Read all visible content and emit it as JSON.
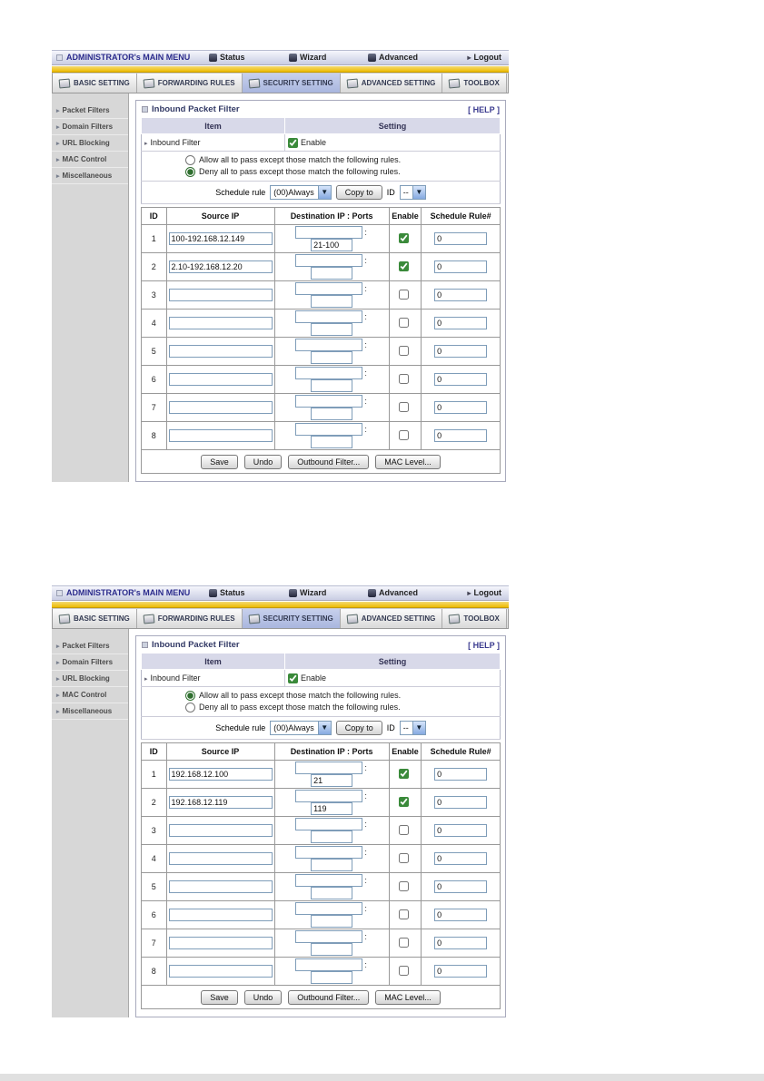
{
  "shared": {
    "menubar": {
      "title": "ADMINISTRATOR's MAIN MENU",
      "status": "Status",
      "wizard": "Wizard",
      "advanced": "Advanced",
      "logout": "Logout",
      "logout_arrow": "▸"
    },
    "tabs": [
      "BASIC SETTING",
      "FORWARDING RULES",
      "SECURITY SETTING",
      "ADVANCED SETTING",
      "TOOLBOX"
    ],
    "sidebar": [
      "Packet Filters",
      "Domain Filters",
      "URL Blocking",
      "MAC Control",
      "Miscellaneous"
    ],
    "panel": {
      "title": "Inbound Packet Filter",
      "help": "[ HELP ]",
      "col_item": "Item",
      "col_setting": "Setting",
      "inbound_filter_label": "Inbound Filter",
      "enable_label": "Enable",
      "allow_label": "Allow all to pass except those match the following rules.",
      "deny_label": "Deny all to pass except those match the following rules.",
      "schedule_label": "Schedule rule",
      "schedule_value": "(00)Always",
      "copy_to_label": "Copy to",
      "id_label": "ID",
      "id_value": "--",
      "th_id": "ID",
      "th_source": "Source IP",
      "th_dest": "Destination IP : Ports",
      "th_enable": "Enable",
      "th_schedule": "Schedule Rule#",
      "save_label": "Save",
      "undo_label": "Undo",
      "outbound_label": "Outbound Filter...",
      "mac_label": "MAC Level..."
    },
    "colors": {
      "accent_yellow": "#eebb00",
      "active_tab": "#aeb9e0",
      "header_lavender": "#d8d9e9",
      "sidebar_gray": "#d7d7d7",
      "link_navy": "#3b3b8f"
    }
  },
  "shots": [
    {
      "filter_enabled": true,
      "allow_checked": false,
      "deny_checked": true,
      "rules": [
        {
          "id": "1",
          "source": "100-192.168.12.149",
          "dest_ip": "",
          "ports": "21-100",
          "enabled": true,
          "schedule": "0"
        },
        {
          "id": "2",
          "source": "2.10-192.168.12.20",
          "dest_ip": "",
          "ports": "",
          "enabled": true,
          "schedule": "0"
        },
        {
          "id": "3",
          "source": "",
          "dest_ip": "",
          "ports": "",
          "enabled": false,
          "schedule": "0"
        },
        {
          "id": "4",
          "source": "",
          "dest_ip": "",
          "ports": "",
          "enabled": false,
          "schedule": "0"
        },
        {
          "id": "5",
          "source": "",
          "dest_ip": "",
          "ports": "",
          "enabled": false,
          "schedule": "0"
        },
        {
          "id": "6",
          "source": "",
          "dest_ip": "",
          "ports": "",
          "enabled": false,
          "schedule": "0"
        },
        {
          "id": "7",
          "source": "",
          "dest_ip": "",
          "ports": "",
          "enabled": false,
          "schedule": "0"
        },
        {
          "id": "8",
          "source": "",
          "dest_ip": "",
          "ports": "",
          "enabled": false,
          "schedule": "0"
        }
      ]
    },
    {
      "filter_enabled": true,
      "allow_checked": true,
      "deny_checked": false,
      "rules": [
        {
          "id": "1",
          "source": "192.168.12.100",
          "dest_ip": "",
          "ports": "21",
          "enabled": true,
          "schedule": "0"
        },
        {
          "id": "2",
          "source": "192.168.12.119",
          "dest_ip": "",
          "ports": "119",
          "enabled": true,
          "schedule": "0"
        },
        {
          "id": "3",
          "source": "",
          "dest_ip": "",
          "ports": "",
          "enabled": false,
          "schedule": "0"
        },
        {
          "id": "4",
          "source": "",
          "dest_ip": "",
          "ports": "",
          "enabled": false,
          "schedule": "0"
        },
        {
          "id": "5",
          "source": "",
          "dest_ip": "",
          "ports": "",
          "enabled": false,
          "schedule": "0"
        },
        {
          "id": "6",
          "source": "",
          "dest_ip": "",
          "ports": "",
          "enabled": false,
          "schedule": "0"
        },
        {
          "id": "7",
          "source": "",
          "dest_ip": "",
          "ports": "",
          "enabled": false,
          "schedule": "0"
        },
        {
          "id": "8",
          "source": "",
          "dest_ip": "",
          "ports": "",
          "enabled": false,
          "schedule": "0"
        }
      ]
    }
  ]
}
